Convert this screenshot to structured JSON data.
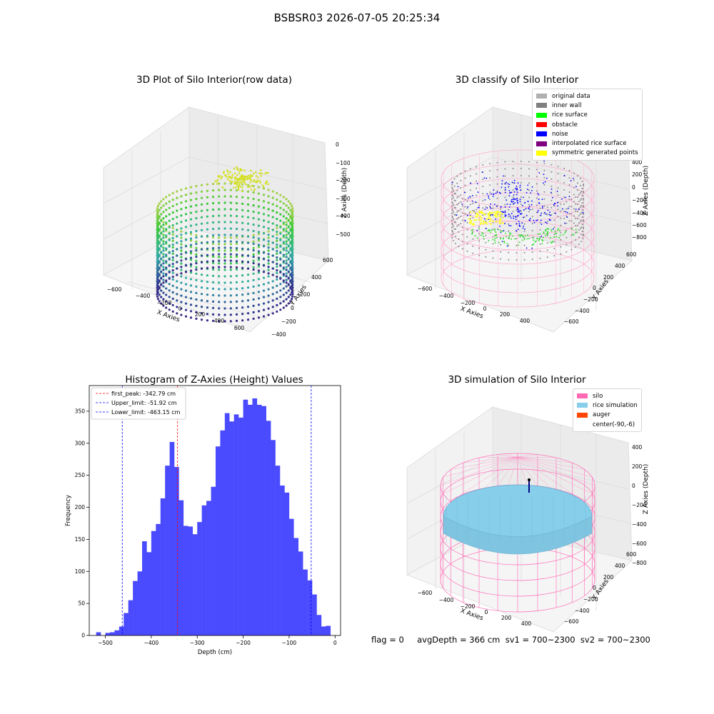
{
  "figure": {
    "title": "BSBSR03 2026-07-05 20:25:34",
    "footer": "flag = 0     avgDepth = 366 cm  sv1 = 700~2300  sv2 = 700~2300"
  },
  "panels": {
    "raw": {
      "title": "3D Plot of Silo Interior(row data)",
      "xlabel": "X Axies",
      "ylabel": "Y Axies",
      "zlabel": "Z Axies (Depth)",
      "xticks": [
        "−600",
        "−400",
        "−200",
        "0",
        "200",
        "400",
        "600"
      ],
      "yticks": [
        "600",
        "400",
        "200",
        "0",
        "−200",
        "−400",
        "−600"
      ],
      "zticks": [
        "0",
        "−100",
        "−200",
        "−300",
        "−400",
        "−500"
      ]
    },
    "classify": {
      "title": "3D classify of Silo Interior",
      "xlabel": "X Axies",
      "ylabel": "Y Axies",
      "zlabel": "Z Axies (Depth)",
      "xticks": [
        "−600",
        "−400",
        "−200",
        "0",
        "200",
        "400"
      ],
      "yticks": [
        "600",
        "400",
        "200",
        "0",
        "−200",
        "−400",
        "−600"
      ],
      "zticks": [
        "400",
        "200",
        "0",
        "−200",
        "−400",
        "−600",
        "−800"
      ],
      "legend": [
        {
          "label": "original data",
          "color": "#b0b0b0"
        },
        {
          "label": "inner wall",
          "color": "#808080"
        },
        {
          "label": "rice surface",
          "color": "#00ff00"
        },
        {
          "label": "obstacle",
          "color": "#ff0000"
        },
        {
          "label": "noise",
          "color": "#0000ff"
        },
        {
          "label": "interpolated rice surface",
          "color": "#800080"
        },
        {
          "label": "symmetric generated points",
          "color": "#ffff00"
        }
      ]
    },
    "simulation": {
      "title": "3D simulation of Silo Interior",
      "xlabel": "X Axies",
      "ylabel": "Y Axies",
      "zlabel": "Z Axies (Depth)",
      "xticks": [
        "−600",
        "−400",
        "−200",
        "0",
        "200",
        "400"
      ],
      "yticks": [
        "600",
        "400",
        "200",
        "0",
        "−200",
        "−400",
        "−600"
      ],
      "zticks": [
        "400",
        "200",
        "0",
        "−200",
        "−400",
        "−600",
        "−800"
      ],
      "legend": [
        {
          "label": "silo",
          "color": "#ff69b4"
        },
        {
          "label": "rice simulation",
          "color": "#87ceeb"
        },
        {
          "label": "auger",
          "color": "#ff4500"
        },
        {
          "label": "center(-90,-6)",
          "color": ""
        }
      ]
    }
  },
  "chart_data": {
    "type": "bar",
    "title": "Histogram of Z-Axies (Height) Values",
    "xlabel": "Depth (cm)",
    "ylabel": "Frequency",
    "xlim": [
      -535,
      12
    ],
    "ylim": [
      0,
      390
    ],
    "xticks": [
      -500,
      -400,
      -300,
      -200,
      -100,
      0
    ],
    "xtick_labels": [
      "−500",
      "−400",
      "−300",
      "−200",
      "−100",
      "0"
    ],
    "yticks": [
      0,
      50,
      100,
      150,
      200,
      250,
      300,
      350
    ],
    "bin_start": -520,
    "bin_width": 10,
    "bin_edges": [
      -520,
      -510,
      -500,
      -490,
      -480,
      -470,
      -460,
      -450,
      -440,
      -430,
      -420,
      -410,
      -400,
      -390,
      -380,
      -370,
      -360,
      -350,
      -340,
      -330,
      -320,
      -310,
      -300,
      -290,
      -280,
      -270,
      -260,
      -250,
      -240,
      -230,
      -220,
      -210,
      -200,
      -190,
      -180,
      -170,
      -160,
      -150,
      -140,
      -130,
      -120,
      -110,
      -100,
      -90,
      -80,
      -70,
      -60,
      -50,
      -40,
      -30,
      -20,
      -10
    ],
    "values": [
      5,
      0,
      4,
      5,
      8,
      14,
      35,
      55,
      85,
      100,
      147,
      130,
      163,
      174,
      214,
      265,
      302,
      263,
      211,
      171,
      170,
      158,
      177,
      203,
      210,
      232,
      295,
      320,
      347,
      334,
      345,
      340,
      368,
      360,
      370,
      360,
      358,
      335,
      305,
      265,
      234,
      223,
      182,
      152,
      131,
      103,
      86,
      64,
      32,
      14,
      15
    ],
    "bar_color": "#4a4aff",
    "vlines": [
      {
        "label": "first_peak: -342.79 cm",
        "x": -342.79,
        "color": "#ff0000"
      },
      {
        "label": "Upper_limit: -51.92 cm",
        "x": -51.92,
        "color": "#0000ff"
      },
      {
        "label": "Lower_limit: -463.15 cm",
        "x": -463.15,
        "color": "#0000ff"
      }
    ],
    "legend_position": "upper-left",
    "grid": false
  }
}
